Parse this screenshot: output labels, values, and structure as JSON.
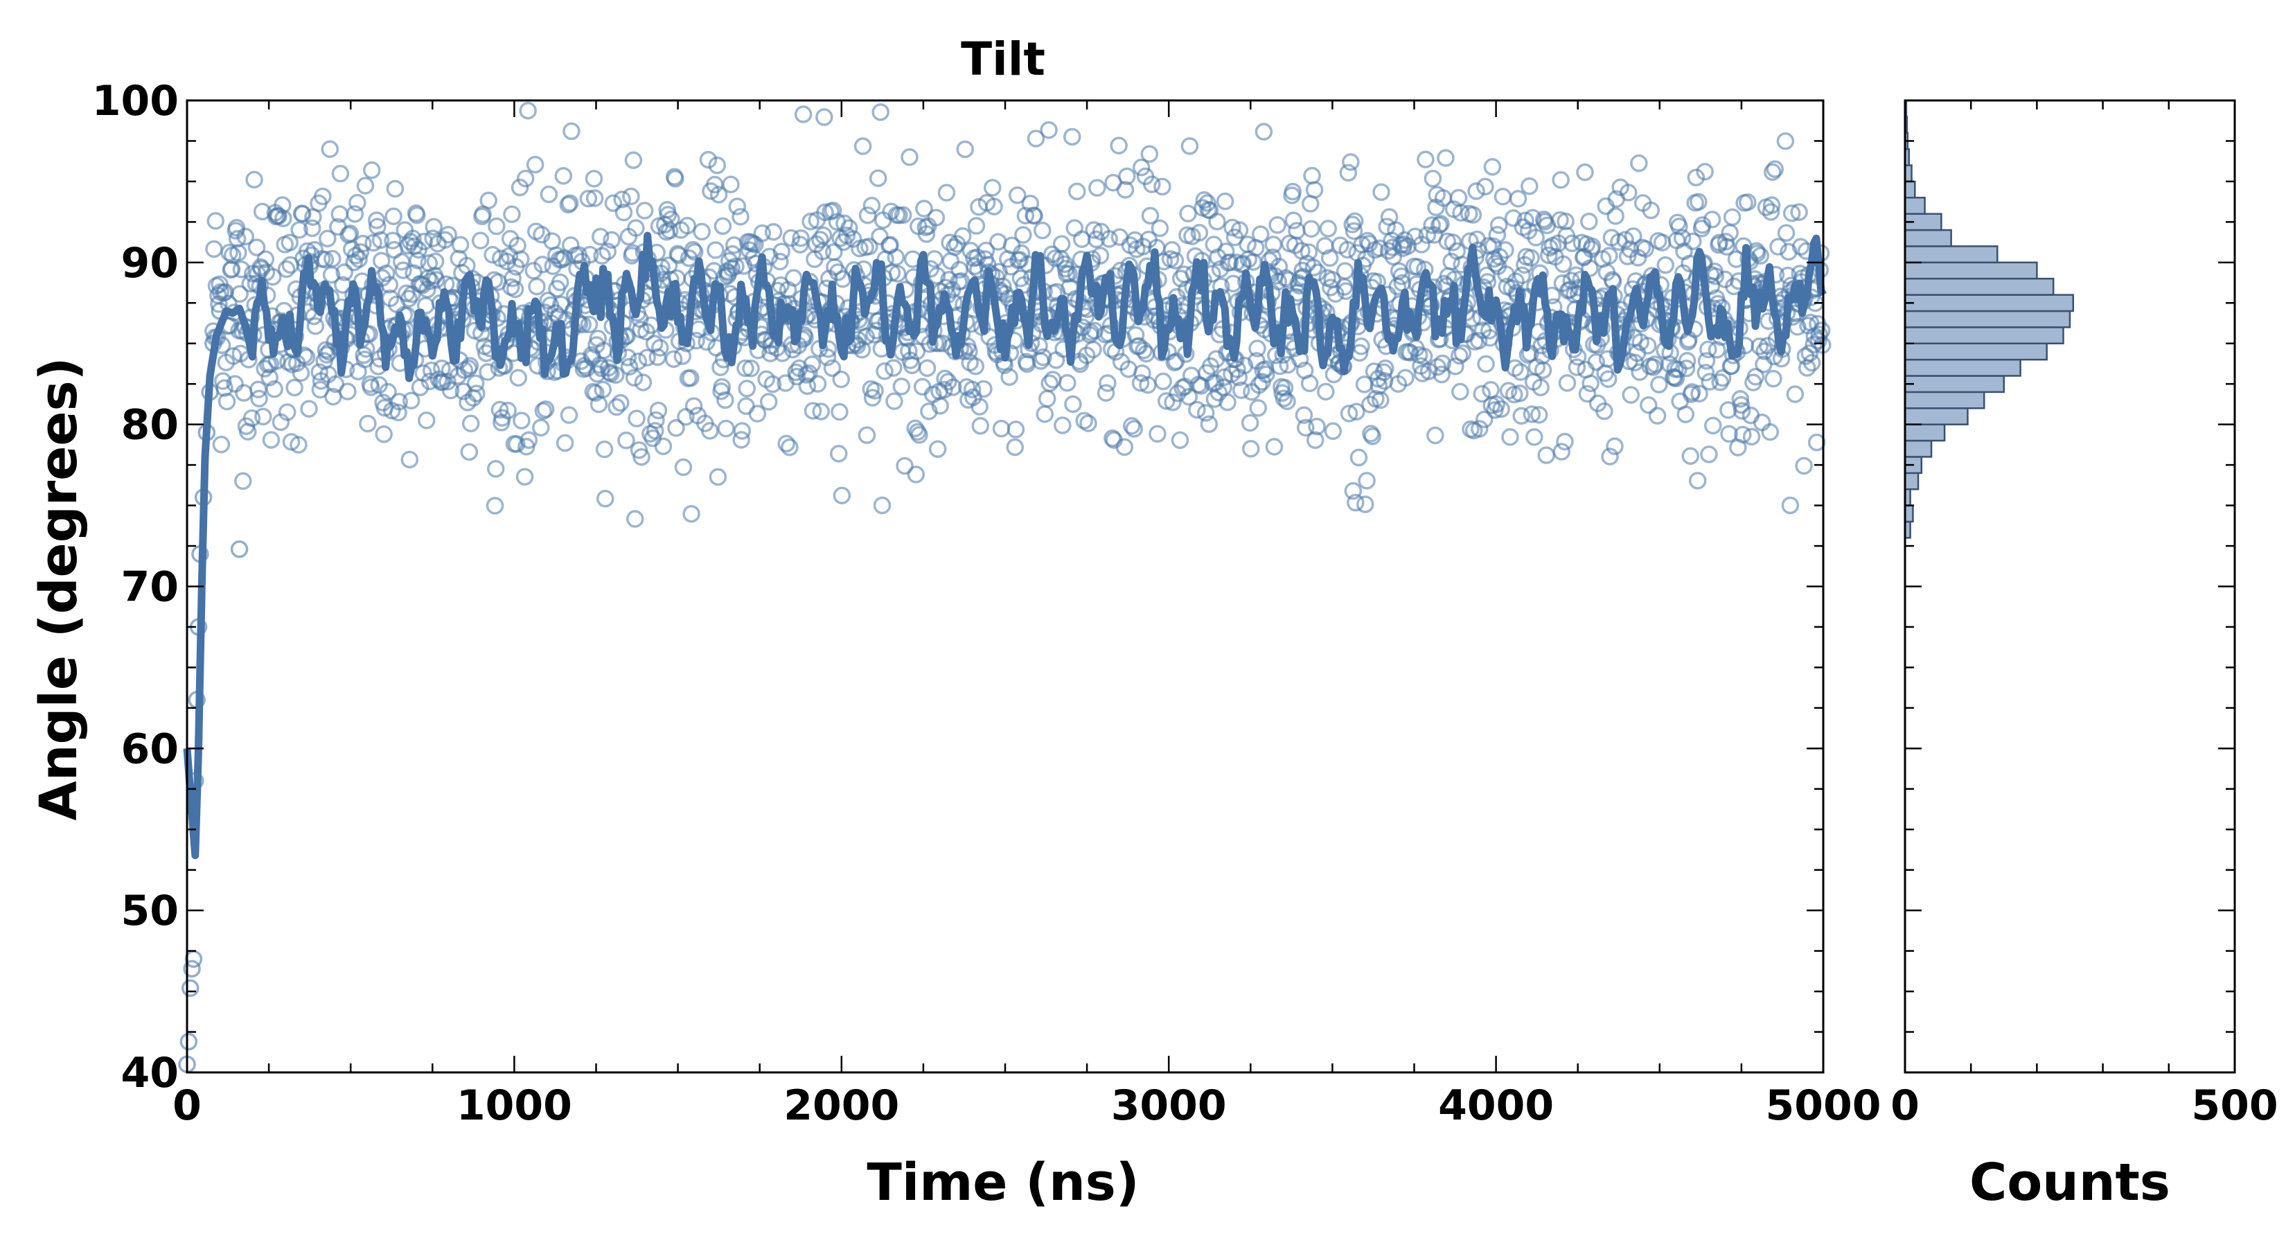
{
  "chart_data": [
    {
      "type": "scatter",
      "title": "Tilt",
      "xlabel": "Time (ns)",
      "ylabel": "Angle (degrees)",
      "xlim": [
        0,
        5000
      ],
      "ylim": [
        40,
        100
      ],
      "xticks": [
        "0",
        "1000",
        "2000",
        "3000",
        "4000",
        "5000"
      ],
      "yticks": [
        "40",
        "50",
        "60",
        "70",
        "80",
        "90",
        "100"
      ],
      "grid": false,
      "marker_color": "#4a78aa",
      "line_color": "#4572a7",
      "scatter": {
        "description_points": "raw tilt samples, ~2000 points",
        "initial": [
          [
            0,
            40.5
          ],
          [
            5,
            41.9
          ],
          [
            10,
            45.2
          ],
          [
            15,
            46.4
          ],
          [
            20,
            47.0
          ],
          [
            25,
            58.0
          ],
          [
            30,
            63.0
          ],
          [
            35,
            67.5
          ],
          [
            40,
            72.0
          ],
          [
            50,
            75.5
          ],
          [
            60,
            79.5
          ],
          [
            70,
            82.0
          ],
          [
            80,
            85.0
          ],
          [
            100,
            87.0
          ],
          [
            160,
            72.3
          ]
        ],
        "steady_mean": 87.0,
        "steady_sd": 4.0,
        "steady_range": [
          74.0,
          99.5
        ]
      },
      "smoothed": [
        [
          0,
          60
        ],
        [
          15,
          56
        ],
        [
          25,
          53.4
        ],
        [
          35,
          60
        ],
        [
          45,
          70
        ],
        [
          55,
          78
        ],
        [
          70,
          83
        ],
        [
          90,
          85.5
        ],
        [
          120,
          87
        ],
        [
          200,
          86.5
        ],
        [
          300,
          86
        ],
        [
          400,
          87.5
        ],
        [
          500,
          86.5
        ],
        [
          600,
          87
        ],
        [
          700,
          84
        ],
        [
          800,
          87.5
        ],
        [
          900,
          87
        ],
        [
          1000,
          86
        ],
        [
          1100,
          84.5
        ],
        [
          1200,
          87.5
        ],
        [
          1300,
          88
        ],
        [
          1400,
          88
        ],
        [
          1500,
          87.5
        ],
        [
          1600,
          87.5
        ],
        [
          1700,
          86
        ],
        [
          1800,
          87.5
        ],
        [
          1900,
          87
        ],
        [
          2000,
          87
        ],
        [
          2100,
          87.5
        ],
        [
          2200,
          87
        ],
        [
          2300,
          87.5
        ],
        [
          2400,
          86.5
        ],
        [
          2500,
          87
        ],
        [
          2600,
          87
        ],
        [
          2700,
          87
        ],
        [
          2800,
          88
        ],
        [
          2900,
          87.5
        ],
        [
          3000,
          87
        ],
        [
          3100,
          87
        ],
        [
          3200,
          87
        ],
        [
          3300,
          87
        ],
        [
          3400,
          86.5
        ],
        [
          3500,
          85.5
        ],
        [
          3600,
          87
        ],
        [
          3700,
          87
        ],
        [
          3800,
          87
        ],
        [
          3900,
          87.5
        ],
        [
          4000,
          87
        ],
        [
          4100,
          87
        ],
        [
          4200,
          86.5
        ],
        [
          4300,
          86.5
        ],
        [
          4400,
          86.5
        ],
        [
          4500,
          87
        ],
        [
          4600,
          87.5
        ],
        [
          4700,
          86.5
        ],
        [
          4800,
          87
        ],
        [
          4900,
          87.5
        ],
        [
          5000,
          88
        ]
      ]
    },
    {
      "type": "bar",
      "orientation": "horizontal",
      "xlabel": "Counts",
      "xlim": [
        0,
        500
      ],
      "xticks": [
        "0",
        "500"
      ],
      "bar_color": "#a3b8d2",
      "bins": [
        {
          "from": 73,
          "to": 74,
          "count": 8
        },
        {
          "from": 74,
          "to": 75,
          "count": 12
        },
        {
          "from": 75,
          "to": 76,
          "count": 8
        },
        {
          "from": 76,
          "to": 77,
          "count": 20
        },
        {
          "from": 77,
          "to": 78,
          "count": 25
        },
        {
          "from": 78,
          "to": 79,
          "count": 40
        },
        {
          "from": 79,
          "to": 80,
          "count": 60
        },
        {
          "from": 80,
          "to": 81,
          "count": 95
        },
        {
          "from": 81,
          "to": 82,
          "count": 120
        },
        {
          "from": 82,
          "to": 83,
          "count": 150
        },
        {
          "from": 83,
          "to": 84,
          "count": 175
        },
        {
          "from": 84,
          "to": 85,
          "count": 215
        },
        {
          "from": 85,
          "to": 86,
          "count": 240
        },
        {
          "from": 86,
          "to": 87,
          "count": 250
        },
        {
          "from": 87,
          "to": 88,
          "count": 255
        },
        {
          "from": 88,
          "to": 89,
          "count": 225
        },
        {
          "from": 89,
          "to": 90,
          "count": 200
        },
        {
          "from": 90,
          "to": 91,
          "count": 140
        },
        {
          "from": 91,
          "to": 92,
          "count": 70
        },
        {
          "from": 92,
          "to": 93,
          "count": 55
        },
        {
          "from": 93,
          "to": 94,
          "count": 30
        },
        {
          "from": 94,
          "to": 95,
          "count": 15
        },
        {
          "from": 95,
          "to": 96,
          "count": 10
        },
        {
          "from": 96,
          "to": 97,
          "count": 6
        },
        {
          "from": 97,
          "to": 98,
          "count": 4
        },
        {
          "from": 98,
          "to": 99,
          "count": 3
        },
        {
          "from": 99,
          "to": 100,
          "count": 2
        }
      ]
    }
  ]
}
